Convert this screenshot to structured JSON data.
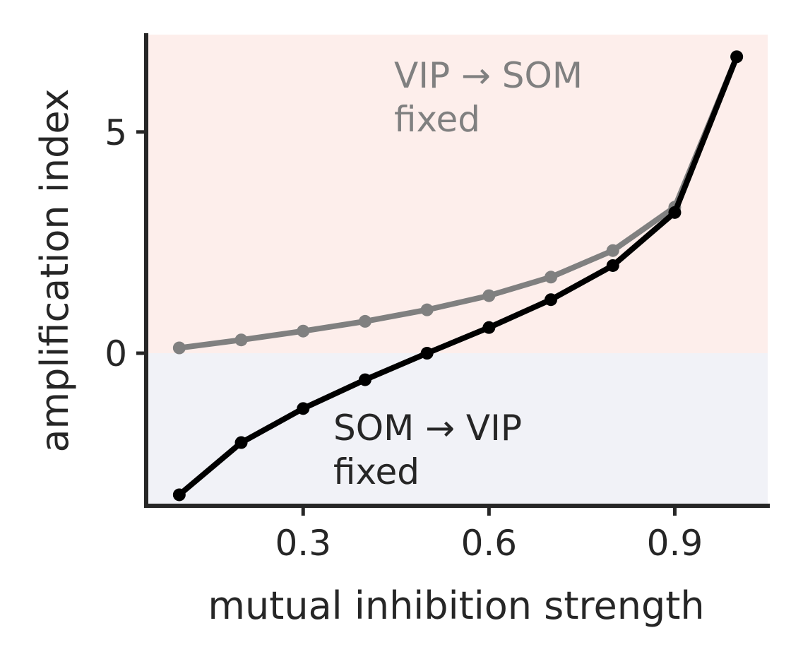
{
  "chart_data": {
    "type": "line",
    "title": "",
    "xlabel": "mutual inhibition strength",
    "ylabel": "amplification index",
    "xlim": [
      0.05,
      1.05
    ],
    "ylim": [
      -3.4,
      7.2
    ],
    "xticks": [
      0.3,
      0.6,
      0.9
    ],
    "xtick_labels": [
      "0.3",
      "0.6",
      "0.9"
    ],
    "yticks": [
      0,
      5
    ],
    "ytick_labels": [
      "0",
      "5"
    ],
    "grid": false,
    "legend": "none",
    "regions": [
      {
        "y0": 0,
        "y1": 7.2,
        "color": "#fdeeeb"
      },
      {
        "y0": -3.4,
        "y1": 0,
        "color": "#f1f2f7"
      }
    ],
    "series": [
      {
        "color": "#808080",
        "x": [
          0.1,
          0.2,
          0.3,
          0.4,
          0.5,
          0.6,
          0.7,
          0.8,
          0.9,
          1.0
        ],
        "y": [
          0.12,
          0.3,
          0.5,
          0.72,
          0.98,
          1.3,
          1.72,
          2.32,
          3.3,
          6.7
        ]
      },
      {
        "color": "#000000",
        "x": [
          0.1,
          0.2,
          0.3,
          0.4,
          0.5,
          0.6,
          0.7,
          0.8,
          0.9,
          1.0
        ],
        "y": [
          -3.2,
          -2.02,
          -1.25,
          -0.6,
          0.0,
          0.58,
          1.21,
          1.98,
          3.18,
          6.7
        ]
      }
    ],
    "annotations": [
      {
        "line1": "VIP → SOM",
        "line2": "fixed",
        "color": "#808080"
      },
      {
        "line1": "SOM → VIP",
        "line2": "fixed",
        "color": "#262626"
      }
    ]
  }
}
